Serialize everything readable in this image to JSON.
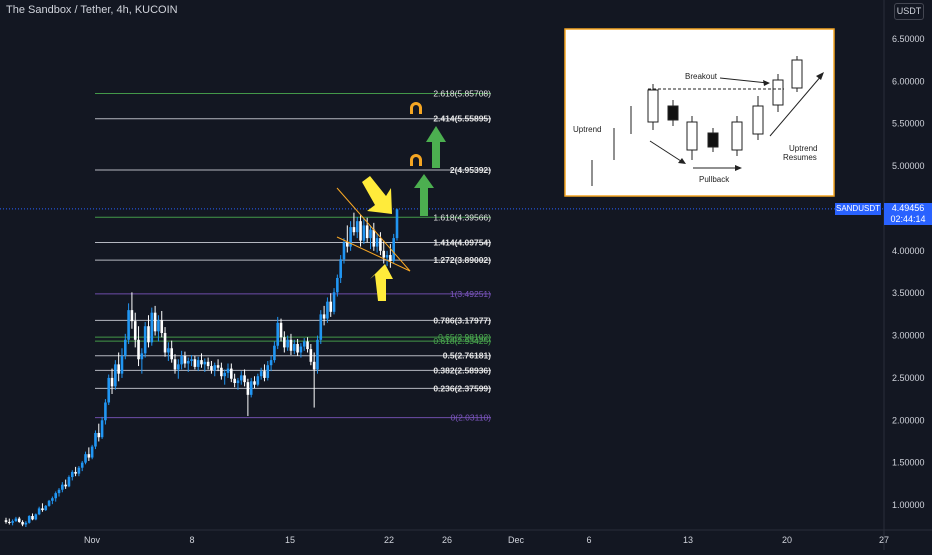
{
  "header": {
    "title": "The Sandbox / Tether, 4h, KUCOIN",
    "currency_badge": "USDT"
  },
  "price_tag": {
    "symbol": "SANDUSDT",
    "price": "4.49456",
    "countdown": "02:44:14"
  },
  "colors": {
    "background": "#131722",
    "up": "#2196f3",
    "down": "#ffffff",
    "fib_green": "#4caf50",
    "fib_purple": "#7e57c2",
    "fib_white": "#d1d4dc",
    "arrow_yellow": "#ffeb3b",
    "arrow_green": "#4caf50",
    "magnet": "#f5a623",
    "current_line": "#2962ff"
  },
  "chart_data": {
    "type": "candlestick",
    "y_ticks": [
      "6.50000",
      "6.00000",
      "5.50000",
      "5.00000",
      "4.50000",
      "4.00000",
      "3.50000",
      "3.00000",
      "2.50000",
      "2.00000",
      "1.50000",
      "1.00000"
    ],
    "x_ticks": [
      "Nov",
      "8",
      "15",
      "22",
      "26",
      "Dec",
      "6",
      "13",
      "20",
      "27"
    ],
    "ylim": [
      0.7,
      6.75
    ],
    "current_price": 4.49456,
    "fib_levels": [
      {
        "label": "2.618(5.85708)",
        "value": 5.85708,
        "color": "green"
      },
      {
        "label": "2.414(5.55895)",
        "value": 5.55895,
        "color": "white"
      },
      {
        "label": "2(4.95392)",
        "value": 4.95392,
        "color": "white"
      },
      {
        "label": "1.618(4.39566)",
        "value": 4.39566,
        "color": "green"
      },
      {
        "label": "1.414(4.09754)",
        "value": 4.09754,
        "color": "white"
      },
      {
        "label": "1.272(3.89002)",
        "value": 3.89002,
        "color": "white"
      },
      {
        "label": "1(3.49251)",
        "value": 3.49251,
        "color": "purple"
      },
      {
        "label": "0.786(3.17977)",
        "value": 3.17977,
        "color": "white"
      },
      {
        "label": "0.65(2.98102)",
        "value": 2.98102,
        "color": "green"
      },
      {
        "label": "0.618(2.93425)",
        "value": 2.93425,
        "color": "green"
      },
      {
        "label": "0.5(2.76181)",
        "value": 2.76181,
        "color": "white"
      },
      {
        "label": "0.382(2.58936)",
        "value": 2.58936,
        "color": "white"
      },
      {
        "label": "0.236(2.37599)",
        "value": 2.37599,
        "color": "white"
      },
      {
        "label": "0(2.03110)",
        "value": 2.0311,
        "color": "purple"
      }
    ],
    "candles": [
      [
        0.82,
        0.85,
        0.78,
        0.8
      ],
      [
        0.8,
        0.84,
        0.77,
        0.79
      ],
      [
        0.79,
        0.83,
        0.76,
        0.81
      ],
      [
        0.81,
        0.86,
        0.8,
        0.84
      ],
      [
        0.84,
        0.86,
        0.79,
        0.8
      ],
      [
        0.8,
        0.82,
        0.75,
        0.77
      ],
      [
        0.77,
        0.81,
        0.74,
        0.79
      ],
      [
        0.79,
        0.88,
        0.78,
        0.87
      ],
      [
        0.87,
        0.9,
        0.82,
        0.83
      ],
      [
        0.83,
        0.9,
        0.82,
        0.89
      ],
      [
        0.89,
        0.98,
        0.88,
        0.96
      ],
      [
        0.96,
        1.02,
        0.92,
        0.94
      ],
      [
        0.94,
        1.0,
        0.93,
        0.99
      ],
      [
        0.99,
        1.06,
        0.98,
        1.05
      ],
      [
        1.05,
        1.1,
        1.01,
        1.08
      ],
      [
        1.08,
        1.16,
        1.04,
        1.14
      ],
      [
        1.14,
        1.2,
        1.1,
        1.18
      ],
      [
        1.18,
        1.27,
        1.15,
        1.24
      ],
      [
        1.24,
        1.3,
        1.19,
        1.22
      ],
      [
        1.22,
        1.35,
        1.21,
        1.33
      ],
      [
        1.33,
        1.41,
        1.29,
        1.39
      ],
      [
        1.39,
        1.45,
        1.34,
        1.37
      ],
      [
        1.37,
        1.46,
        1.34,
        1.44
      ],
      [
        1.44,
        1.52,
        1.4,
        1.5
      ],
      [
        1.5,
        1.63,
        1.48,
        1.6
      ],
      [
        1.6,
        1.68,
        1.52,
        1.56
      ],
      [
        1.56,
        1.71,
        1.54,
        1.69
      ],
      [
        1.69,
        1.88,
        1.66,
        1.85
      ],
      [
        1.85,
        1.96,
        1.75,
        1.8
      ],
      [
        1.8,
        2.04,
        1.78,
        2.0
      ],
      [
        2.0,
        2.25,
        1.95,
        2.21
      ],
      [
        2.21,
        2.54,
        2.18,
        2.5
      ],
      [
        2.5,
        2.61,
        2.31,
        2.4
      ],
      [
        2.4,
        2.71,
        2.36,
        2.66
      ],
      [
        2.66,
        2.8,
        2.46,
        2.55
      ],
      [
        2.55,
        2.85,
        2.5,
        2.76
      ],
      [
        2.76,
        3.02,
        2.72,
        2.95
      ],
      [
        2.95,
        3.38,
        2.9,
        3.3
      ],
      [
        3.3,
        3.51,
        3.08,
        3.17
      ],
      [
        3.17,
        3.27,
        2.86,
        2.95
      ],
      [
        2.95,
        3.11,
        2.64,
        2.72
      ],
      [
        2.72,
        2.85,
        2.55,
        2.79
      ],
      [
        2.79,
        3.16,
        2.74,
        3.11
      ],
      [
        3.11,
        3.24,
        2.86,
        2.92
      ],
      [
        2.92,
        3.33,
        2.88,
        3.27
      ],
      [
        3.27,
        3.35,
        3.0,
        3.05
      ],
      [
        3.05,
        3.24,
        2.93,
        3.18
      ],
      [
        3.18,
        3.29,
        2.98,
        3.03
      ],
      [
        3.03,
        3.1,
        2.75,
        2.8
      ],
      [
        2.8,
        2.92,
        2.7,
        2.85
      ],
      [
        2.85,
        2.94,
        2.68,
        2.72
      ],
      [
        2.72,
        2.78,
        2.55,
        2.6
      ],
      [
        2.6,
        2.72,
        2.49,
        2.66
      ],
      [
        2.66,
        2.82,
        2.6,
        2.76
      ],
      [
        2.76,
        2.81,
        2.62,
        2.67
      ],
      [
        2.67,
        2.74,
        2.57,
        2.7
      ],
      [
        2.7,
        2.77,
        2.64,
        2.72
      ],
      [
        2.72,
        2.76,
        2.6,
        2.63
      ],
      [
        2.63,
        2.75,
        2.58,
        2.71
      ],
      [
        2.71,
        2.79,
        2.62,
        2.66
      ],
      [
        2.66,
        2.73,
        2.57,
        2.69
      ],
      [
        2.69,
        2.74,
        2.6,
        2.64
      ],
      [
        2.64,
        2.7,
        2.55,
        2.59
      ],
      [
        2.59,
        2.68,
        2.52,
        2.65
      ],
      [
        2.65,
        2.72,
        2.58,
        2.62
      ],
      [
        2.62,
        2.68,
        2.48,
        2.52
      ],
      [
        2.52,
        2.6,
        2.42,
        2.56
      ],
      [
        2.56,
        2.67,
        2.5,
        2.61
      ],
      [
        2.61,
        2.67,
        2.45,
        2.49
      ],
      [
        2.49,
        2.55,
        2.39,
        2.44
      ],
      [
        2.44,
        2.5,
        2.36,
        2.47
      ],
      [
        2.47,
        2.58,
        2.42,
        2.53
      ],
      [
        2.53,
        2.6,
        2.4,
        2.45
      ],
      [
        2.45,
        2.49,
        2.05,
        2.3
      ],
      [
        2.3,
        2.5,
        2.27,
        2.46
      ],
      [
        2.46,
        2.52,
        2.38,
        2.42
      ],
      [
        2.42,
        2.55,
        2.4,
        2.52
      ],
      [
        2.52,
        2.62,
        2.48,
        2.58
      ],
      [
        2.58,
        2.66,
        2.46,
        2.5
      ],
      [
        2.5,
        2.7,
        2.47,
        2.65
      ],
      [
        2.65,
        2.76,
        2.58,
        2.71
      ],
      [
        2.71,
        2.93,
        2.68,
        2.88
      ],
      [
        2.88,
        3.22,
        2.84,
        3.15
      ],
      [
        3.15,
        3.2,
        2.93,
        2.98
      ],
      [
        2.98,
        3.05,
        2.8,
        2.86
      ],
      [
        2.86,
        3.0,
        2.82,
        2.95
      ],
      [
        2.95,
        3.02,
        2.77,
        2.82
      ],
      [
        2.82,
        2.95,
        2.78,
        2.9
      ],
      [
        2.9,
        2.96,
        2.76,
        2.8
      ],
      [
        2.8,
        2.91,
        2.74,
        2.87
      ],
      [
        2.87,
        2.97,
        2.82,
        2.93
      ],
      [
        2.93,
        2.98,
        2.8,
        2.84
      ],
      [
        2.84,
        2.9,
        2.65,
        2.69
      ],
      [
        2.69,
        2.8,
        2.15,
        2.6
      ],
      [
        2.6,
        3.0,
        2.55,
        2.95
      ],
      [
        2.95,
        3.3,
        2.9,
        3.25
      ],
      [
        3.25,
        3.35,
        3.12,
        3.2
      ],
      [
        3.2,
        3.45,
        3.15,
        3.4
      ],
      [
        3.4,
        3.5,
        3.22,
        3.28
      ],
      [
        3.28,
        3.56,
        3.25,
        3.51
      ],
      [
        3.51,
        3.72,
        3.46,
        3.68
      ],
      [
        3.68,
        3.95,
        3.62,
        3.9
      ],
      [
        3.9,
        4.15,
        3.85,
        4.1
      ],
      [
        4.1,
        4.3,
        3.98,
        4.05
      ],
      [
        4.05,
        4.35,
        4.0,
        4.28
      ],
      [
        4.28,
        4.45,
        4.18,
        4.22
      ],
      [
        4.22,
        4.4,
        4.15,
        4.35
      ],
      [
        4.35,
        4.42,
        4.05,
        4.12
      ],
      [
        4.12,
        4.38,
        4.08,
        4.3
      ],
      [
        4.3,
        4.39,
        4.1,
        4.15
      ],
      [
        4.15,
        4.3,
        4.02,
        4.25
      ],
      [
        4.25,
        4.33,
        4.0,
        4.05
      ],
      [
        4.05,
        4.2,
        3.98,
        4.15
      ],
      [
        4.15,
        4.22,
        3.95,
        4.0
      ],
      [
        4.0,
        4.12,
        3.85,
        3.92
      ],
      [
        3.92,
        4.0,
        3.82,
        3.95
      ],
      [
        3.95,
        4.08,
        3.8,
        3.88
      ],
      [
        3.88,
        4.2,
        3.85,
        4.15
      ],
      [
        4.15,
        4.5,
        4.12,
        4.49
      ]
    ]
  },
  "fib_group": {
    "label_a": "2.618(5.85708)",
    "label_b": "2.414(5.55895)",
    "label_c": "2(4.95392)"
  },
  "inset": {
    "breakout": "Breakout",
    "uptrend": "Uptrend",
    "pullback": "Pullback",
    "uptrend_resumes_1": "Uptrend",
    "uptrend_resumes_2": "Resumes"
  }
}
